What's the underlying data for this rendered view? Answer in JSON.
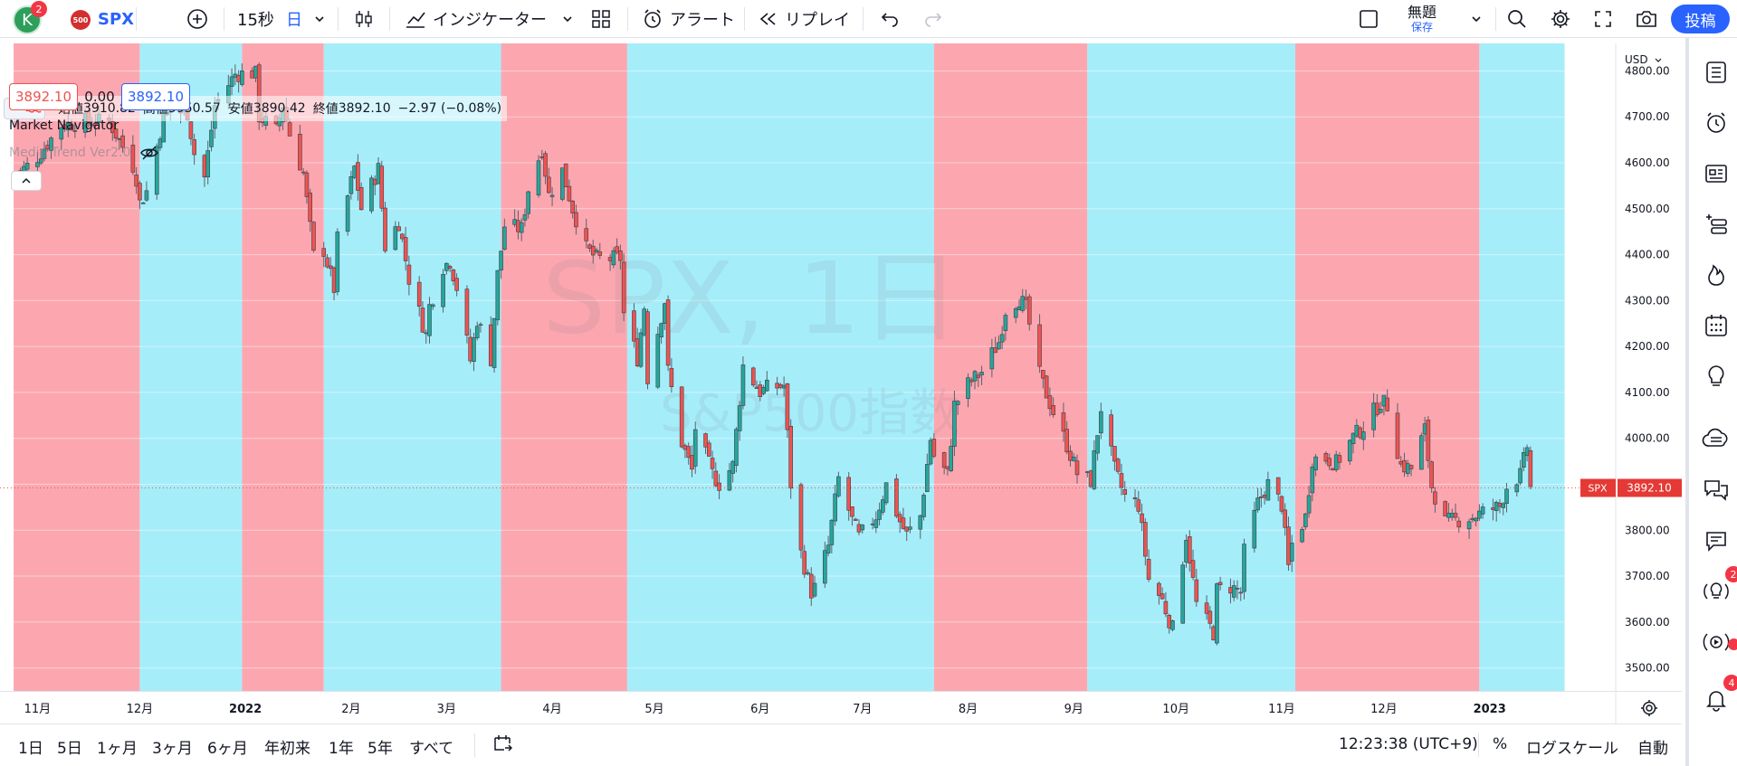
{
  "header": {
    "avatar_letter": "K",
    "avatar_badge": "2",
    "symbol_logo": "500",
    "symbol": "SPX",
    "interval": "15秒",
    "timeframe": "日",
    "indicators_label": "インジケーター",
    "alert_label": "アラート",
    "replay_label": "リプレイ",
    "layout_name": "無題",
    "save_label": "保存",
    "post_label": "投稿"
  },
  "legend": {
    "open_label": "始値",
    "open": "3910.82",
    "high_label": "高値",
    "high": "3950.57",
    "low_label": "安値",
    "low": "3890.42",
    "close_label": "終値",
    "close": "3892.10",
    "change": "−2.97 (−0.08%)",
    "bid": "3892.10",
    "spread": "0.00",
    "ask": "3892.10",
    "indicator1": "Market Navigator",
    "indicator2": "Media Trend Ver2.0"
  },
  "watermark": {
    "symbol": "SPX, 1日",
    "name": "S&P500指数"
  },
  "price_axis": {
    "currency": "USD",
    "ticks": [
      "4800.00",
      "4700.00",
      "4600.00",
      "4500.00",
      "4400.00",
      "4300.00",
      "4200.00",
      "4100.00",
      "4000.00",
      "3900.00",
      "3800.00",
      "3700.00",
      "3600.00",
      "3500.00"
    ],
    "last_label_symbol": "SPX",
    "last_label_price": "3892.10"
  },
  "time_axis": {
    "ticks": [
      "11月",
      "12月",
      "2022",
      "2月",
      "3月",
      "4月",
      "5月",
      "6月",
      "7月",
      "8月",
      "9月",
      "10月",
      "11月",
      "12月",
      "2023"
    ]
  },
  "bottom": {
    "ranges": [
      "1日",
      "5日",
      "1ヶ月",
      "3ヶ月",
      "6ヶ月",
      "年初来",
      "1年",
      "5年",
      "すべて"
    ],
    "clock": "12:23:38 (UTC+9)",
    "percent_label": "%",
    "log_label": "ログスケール",
    "auto_label": "自動"
  },
  "right_sidebar_badges": {
    "ideas": "2",
    "notifications": "4"
  },
  "colors": {
    "up": "#26a69a",
    "down": "#ef5350",
    "bull_zone": "#a6edfa",
    "bear_zone": "#fca7b0",
    "accent": "#2962ff"
  },
  "chart_data": {
    "type": "candlestick",
    "ylim": [
      3450,
      4860
    ],
    "price_ticks": [
      4800,
      4700,
      4600,
      4500,
      4400,
      4300,
      4200,
      4100,
      4000,
      3900,
      3800,
      3700,
      3600,
      3500
    ],
    "last_price": 3892.1,
    "zones": [
      {
        "from": "2021-10-25",
        "to": "2021-12-01",
        "trend": "down"
      },
      {
        "from": "2021-12-01",
        "to": "2021-12-31",
        "trend": "up"
      },
      {
        "from": "2021-12-31",
        "to": "2022-01-24",
        "trend": "down"
      },
      {
        "from": "2022-01-24",
        "to": "2022-03-17",
        "trend": "up"
      },
      {
        "from": "2022-03-17",
        "to": "2022-04-23",
        "trend": "down"
      },
      {
        "from": "2022-04-23",
        "to": "2022-07-22",
        "trend": "up"
      },
      {
        "from": "2022-07-22",
        "to": "2022-09-05",
        "trend": "down"
      },
      {
        "from": "2022-09-05",
        "to": "2022-11-05",
        "trend": "up"
      },
      {
        "from": "2022-11-05",
        "to": "2022-12-29",
        "trend": "down"
      },
      {
        "from": "2022-12-29",
        "to": "2023-01-23",
        "trend": "up"
      }
    ],
    "closes": [
      [
        "2021-10-25",
        4566
      ],
      [
        "2021-11-01",
        4613
      ],
      [
        "2021-11-08",
        4682
      ],
      [
        "2021-11-15",
        4690
      ],
      [
        "2021-11-22",
        4690
      ],
      [
        "2021-11-29",
        4594
      ],
      [
        "2021-11-30",
        4567
      ],
      [
        "2021-12-01",
        4513
      ],
      [
        "2021-12-03",
        4538
      ],
      [
        "2021-12-08",
        4701
      ],
      [
        "2021-12-10",
        4712
      ],
      [
        "2021-12-15",
        4709
      ],
      [
        "2021-12-17",
        4620
      ],
      [
        "2021-12-20",
        4568
      ],
      [
        "2021-12-23",
        4725
      ],
      [
        "2021-12-29",
        4793
      ],
      [
        "2022-01-03",
        4796
      ],
      [
        "2022-01-04",
        4793
      ],
      [
        "2022-01-05",
        4701
      ],
      [
        "2022-01-10",
        4670
      ],
      [
        "2022-01-12",
        4726
      ],
      [
        "2022-01-14",
        4662
      ],
      [
        "2022-01-18",
        4577
      ],
      [
        "2022-01-21",
        4398
      ],
      [
        "2022-01-24",
        4410
      ],
      [
        "2022-01-27",
        4326
      ],
      [
        "2022-01-28",
        4432
      ],
      [
        "2022-02-02",
        4589
      ],
      [
        "2022-02-04",
        4500
      ],
      [
        "2022-02-09",
        4587
      ],
      [
        "2022-02-11",
        4418
      ],
      [
        "2022-02-15",
        4471
      ],
      [
        "2022-02-18",
        4348
      ],
      [
        "2022-02-23",
        4225
      ],
      [
        "2022-02-24",
        4288
      ],
      [
        "2022-02-28",
        4374
      ],
      [
        "2022-03-02",
        4386
      ],
      [
        "2022-03-04",
        4329
      ],
      [
        "2022-03-08",
        4170
      ],
      [
        "2022-03-10",
        4259
      ],
      [
        "2022-03-14",
        4173
      ],
      [
        "2022-03-16",
        4357
      ],
      [
        "2022-03-18",
        4463
      ],
      [
        "2022-03-23",
        4456
      ],
      [
        "2022-03-25",
        4543
      ],
      [
        "2022-03-29",
        4631
      ],
      [
        "2022-03-31",
        4530
      ],
      [
        "2022-04-04",
        4583
      ],
      [
        "2022-04-07",
        4500
      ],
      [
        "2022-04-11",
        4413
      ],
      [
        "2022-04-14",
        4392
      ],
      [
        "2022-04-18",
        4391
      ],
      [
        "2022-04-21",
        4393
      ],
      [
        "2022-04-22",
        4271
      ],
      [
        "2022-04-26",
        4175
      ],
      [
        "2022-04-28",
        4287
      ],
      [
        "2022-04-29",
        4132
      ],
      [
        "2022-05-04",
        4300
      ],
      [
        "2022-05-05",
        4146
      ],
      [
        "2022-05-09",
        3991
      ],
      [
        "2022-05-12",
        3930
      ],
      [
        "2022-05-13",
        4023
      ],
      [
        "2022-05-18",
        3923
      ],
      [
        "2022-05-20",
        3901
      ],
      [
        "2022-05-24",
        3941
      ],
      [
        "2022-05-27",
        4158
      ],
      [
        "2022-06-01",
        4101
      ],
      [
        "2022-06-03",
        4109
      ],
      [
        "2022-06-08",
        4115
      ],
      [
        "2022-06-10",
        3900
      ],
      [
        "2022-06-13",
        3750
      ],
      [
        "2022-06-16",
        3666
      ],
      [
        "2022-06-17",
        3674
      ],
      [
        "2022-06-21",
        3765
      ],
      [
        "2022-06-24",
        3912
      ],
      [
        "2022-06-28",
        3821
      ],
      [
        "2022-06-30",
        3785
      ],
      [
        "2022-07-05",
        3831
      ],
      [
        "2022-07-08",
        3899
      ],
      [
        "2022-07-12",
        3819
      ],
      [
        "2022-07-14",
        3790
      ],
      [
        "2022-07-18",
        3831
      ],
      [
        "2022-07-21",
        3999
      ],
      [
        "2022-07-22",
        3962
      ],
      [
        "2022-07-26",
        3921
      ],
      [
        "2022-07-28",
        4072
      ],
      [
        "2022-08-01",
        4118
      ],
      [
        "2022-08-05",
        4145
      ],
      [
        "2022-08-10",
        4210
      ],
      [
        "2022-08-12",
        4280
      ],
      [
        "2022-08-16",
        4305
      ],
      [
        "2022-08-18",
        4284
      ],
      [
        "2022-08-22",
        4138
      ],
      [
        "2022-08-26",
        4057
      ],
      [
        "2022-08-30",
        3986
      ],
      [
        "2022-09-02",
        3924
      ],
      [
        "2022-09-06",
        3908
      ],
      [
        "2022-09-09",
        4067
      ],
      [
        "2022-09-13",
        3932
      ],
      [
        "2022-09-16",
        3873
      ],
      [
        "2022-09-20",
        3855
      ],
      [
        "2022-09-23",
        3693
      ],
      [
        "2022-09-27",
        3647
      ],
      [
        "2022-09-30",
        3585
      ],
      [
        "2022-10-04",
        3790
      ],
      [
        "2022-10-07",
        3639
      ],
      [
        "2022-10-12",
        3577
      ],
      [
        "2022-10-13",
        3669
      ],
      [
        "2022-10-17",
        3677
      ],
      [
        "2022-10-20",
        3665
      ],
      [
        "2022-10-21",
        3752
      ],
      [
        "2022-10-25",
        3859
      ],
      [
        "2022-10-28",
        3901
      ],
      [
        "2022-11-01",
        3856
      ],
      [
        "2022-11-03",
        3719
      ],
      [
        "2022-11-04",
        3770
      ],
      [
        "2022-11-08",
        3828
      ],
      [
        "2022-11-10",
        3956
      ],
      [
        "2022-11-14",
        3957
      ],
      [
        "2022-11-17",
        3946
      ],
      [
        "2022-11-22",
        4003
      ],
      [
        "2022-11-25",
        4026
      ],
      [
        "2022-11-30",
        4080
      ],
      [
        "2022-12-02",
        4072
      ],
      [
        "2022-12-06",
        3941
      ],
      [
        "2022-12-09",
        3934
      ],
      [
        "2022-12-13",
        4019
      ],
      [
        "2022-12-15",
        3895
      ],
      [
        "2022-12-19",
        3817
      ],
      [
        "2022-12-22",
        3822
      ],
      [
        "2022-12-27",
        3829
      ],
      [
        "2022-12-30",
        3839
      ],
      [
        "2023-01-04",
        3852
      ],
      [
        "2023-01-06",
        3895
      ],
      [
        "2023-01-10",
        3919
      ],
      [
        "2023-01-12",
        3983
      ],
      [
        "2023-01-13",
        3892
      ]
    ]
  }
}
